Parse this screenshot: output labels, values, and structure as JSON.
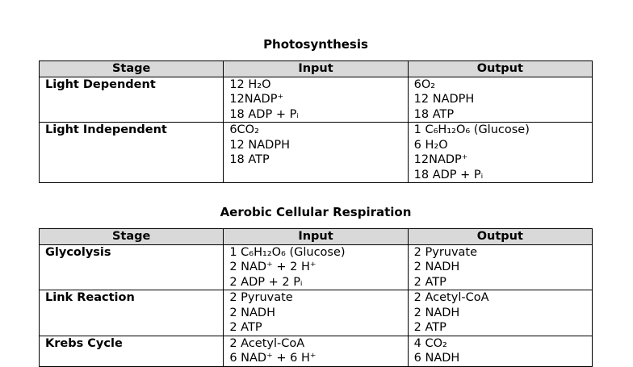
{
  "sections": [
    {
      "title": "Photosynthesis",
      "table": {
        "header": [
          "Stage",
          "Input",
          "Output"
        ],
        "rows": [
          {
            "stage": "Light Dependent",
            "input": [
              "12 H₂O",
              "12NADP⁺",
              "18 ADP + Pᵢ"
            ],
            "output": [
              "6O₂",
              "12 NADPH",
              "18 ATP"
            ]
          },
          {
            "stage": "Light Independent",
            "input": [
              "6CO₂",
              "12 NADPH",
              "18 ATP"
            ],
            "output": [
              "1 C₆H₁₂O₆ (Glucose)",
              "6 H₂O",
              "12NADP⁺",
              "18 ADP + Pᵢ"
            ]
          }
        ]
      }
    },
    {
      "title": "Aerobic Cellular Respiration",
      "table": {
        "header": [
          "Stage",
          "Input",
          "Output"
        ],
        "rows": [
          {
            "stage": "Glycolysis",
            "input": [
              "1 C₆H₁₂O₆ (Glucose)",
              "2 NAD⁺ + 2 H⁺",
              "2 ADP + 2 Pᵢ"
            ],
            "output": [
              "2 Pyruvate",
              "2 NADH",
              "2 ATP"
            ]
          },
          {
            "stage": "Link Reaction",
            "input": [
              "2 Pyruvate",
              "2 NADH",
              "2 ATP"
            ],
            "output": [
              "2 Acetyl-CoA",
              "2 NADH",
              "2 ATP"
            ]
          },
          {
            "stage": "Krebs Cycle",
            "input": [
              "2 Acetyl-CoA",
              "6 NAD⁺ + 6 H⁺"
            ],
            "output": [
              "4 CO₂",
              "6 NADH"
            ]
          }
        ]
      }
    }
  ]
}
